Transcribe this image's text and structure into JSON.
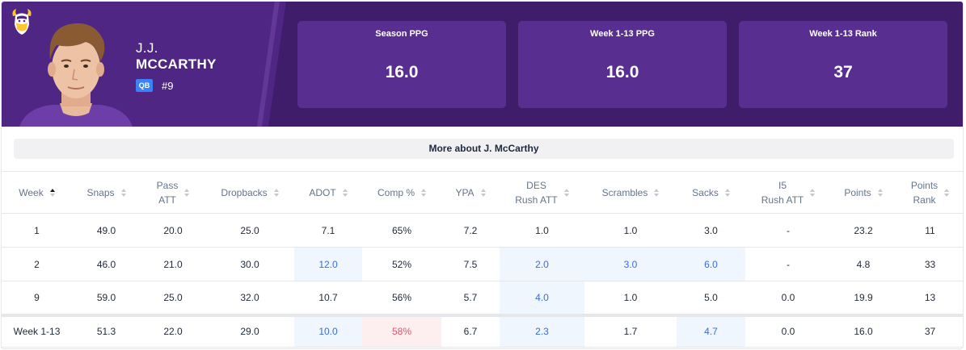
{
  "player": {
    "first_name": "J.J.",
    "last_name": "MCCARTHY",
    "position": "QB",
    "jersey": "#9"
  },
  "stats": [
    {
      "label": "Season PPG",
      "value": "16.0"
    },
    {
      "label": "Week 1-13 PPG",
      "value": "16.0"
    },
    {
      "label": "Week 1-13 Rank",
      "value": "37"
    }
  ],
  "more_about": "More about J. McCarthy",
  "colors": {
    "header_bg": "#4f2683",
    "stat_box_bg": "#582e91",
    "highlight_good": "#3b6bd6",
    "highlight_bad": "#e0566b"
  },
  "table": {
    "headers": [
      {
        "l1": "Week",
        "l2": ""
      },
      {
        "l1": "Snaps",
        "l2": ""
      },
      {
        "l1": "Pass",
        "l2": "ATT"
      },
      {
        "l1": "Dropbacks",
        "l2": ""
      },
      {
        "l1": "ADOT",
        "l2": ""
      },
      {
        "l1": "Comp %",
        "l2": ""
      },
      {
        "l1": "YPA",
        "l2": ""
      },
      {
        "l1": "DES",
        "l2": "Rush ATT"
      },
      {
        "l1": "Scrambles",
        "l2": ""
      },
      {
        "l1": "Sacks",
        "l2": ""
      },
      {
        "l1": "I5",
        "l2": "Rush ATT"
      },
      {
        "l1": "Points",
        "l2": ""
      },
      {
        "l1": "Points",
        "l2": "Rank"
      }
    ],
    "rows": [
      [
        "1",
        "49.0",
        "20.0",
        "25.0",
        "7.1",
        "65%",
        "7.2",
        "1.0",
        "1.0",
        "3.0",
        "-",
        "23.2",
        "11"
      ],
      [
        "2",
        "46.0",
        "21.0",
        "30.0",
        "12.0",
        "52%",
        "7.5",
        "2.0",
        "3.0",
        "6.0",
        "-",
        "4.8",
        "33"
      ],
      [
        "9",
        "59.0",
        "25.0",
        "32.0",
        "10.7",
        "56%",
        "5.7",
        "4.0",
        "1.0",
        "5.0",
        "0.0",
        "19.9",
        "13"
      ]
    ],
    "total": [
      "Week 1-13",
      "51.3",
      "22.0",
      "29.0",
      "10.0",
      "58%",
      "6.7",
      "2.3",
      "1.7",
      "4.7",
      "0.0",
      "16.0",
      "37"
    ]
  }
}
